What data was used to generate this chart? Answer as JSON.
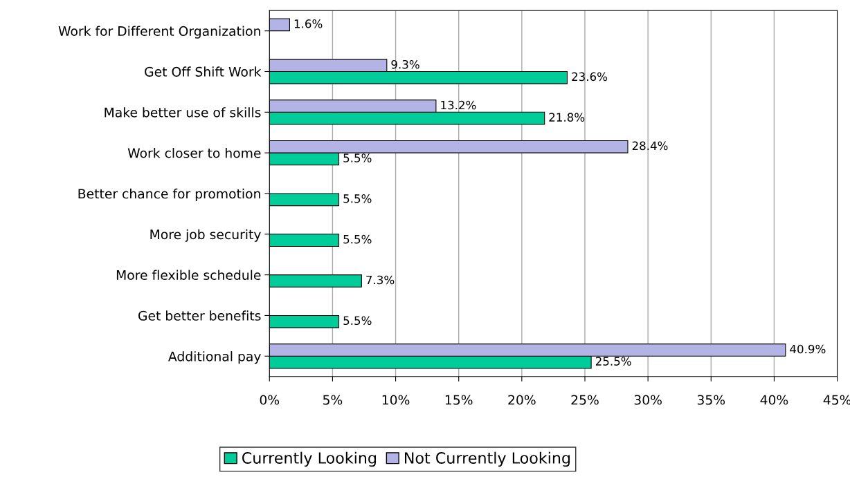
{
  "chart_data": {
    "type": "bar",
    "orientation": "horizontal",
    "categories": [
      "Work for Different Organization",
      "Get Off Shift Work",
      "Make better use of skills",
      "Work closer to home",
      "Better chance for promotion",
      "More job security",
      "More flexible schedule",
      "Get better benefits",
      "Additional pay"
    ],
    "series": [
      {
        "name": "Currently Looking",
        "color": "#00cc99",
        "values": [
          null,
          23.6,
          21.8,
          5.5,
          5.5,
          5.5,
          7.3,
          5.5,
          25.5
        ],
        "value_labels": [
          null,
          "23.6%",
          "21.8%",
          "5.5%",
          "5.5%",
          "5.5%",
          "7.3%",
          "5.5%",
          "25.5%"
        ]
      },
      {
        "name": "Not Currently Looking",
        "color": "#b3b3e6",
        "values": [
          1.6,
          9.3,
          13.2,
          28.4,
          null,
          null,
          null,
          null,
          40.9
        ],
        "value_labels": [
          "1.6%",
          "9.3%",
          "13.2%",
          "28.4%",
          null,
          null,
          null,
          null,
          "40.9%"
        ]
      }
    ],
    "xlim": [
      0,
      45
    ],
    "xticks": [
      {
        "value": 0,
        "label": "0%"
      },
      {
        "value": 5,
        "label": "5%"
      },
      {
        "value": 10,
        "label": "10%"
      },
      {
        "value": 15,
        "label": "15%"
      },
      {
        "value": 20,
        "label": "20%"
      },
      {
        "value": 25,
        "label": "25%"
      },
      {
        "value": 30,
        "label": "30%"
      },
      {
        "value": 35,
        "label": "35%"
      },
      {
        "value": 40,
        "label": "40%"
      },
      {
        "value": 45,
        "label": "45%"
      }
    ],
    "grid": "x",
    "legend": "bottom"
  }
}
